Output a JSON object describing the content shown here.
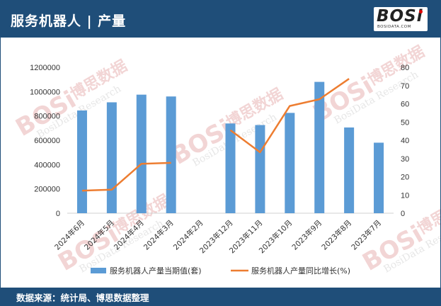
{
  "header": {
    "title": "服务机器人 | 产量"
  },
  "logo": {
    "main": "BOSi",
    "sub": "BOSIDATA.COM"
  },
  "footer": {
    "source": "数据来源：统计局、博思数据整理"
  },
  "watermark": {
    "mark": "BOSi",
    "cn": "博思数据",
    "en": "BosiData Research"
  },
  "colors": {
    "bar": "#5b9bd5",
    "line": "#ed7d31",
    "header": "#1f4e79"
  },
  "chart_data": {
    "type": "bar",
    "categories": [
      "2024年6月",
      "2024年5月",
      "2024年4月",
      "2024年3月",
      "2024年2月",
      "2023年12月",
      "2023年11月",
      "2023年10月",
      "2023年9月",
      "2023年8月",
      "2023年7月"
    ],
    "series": [
      {
        "name": "服务机器人产量当期值(套)",
        "type": "bar",
        "axis": "left",
        "values": [
          845000,
          912000,
          975000,
          960000,
          null,
          738000,
          725000,
          825000,
          1080000,
          705000,
          580000
        ]
      },
      {
        "name": "服务机器人产量同比增长(%)",
        "type": "line",
        "axis": "right",
        "values": [
          12.4,
          12.9,
          27.1,
          27.6,
          null,
          45.5,
          33.4,
          58.8,
          62.5,
          73.7,
          null
        ]
      }
    ],
    "y_left": {
      "min": 0,
      "max": 1200000,
      "ticks": [
        "0",
        "200000",
        "400000",
        "600000",
        "800000",
        "1000000",
        "1200000"
      ]
    },
    "y_right": {
      "min": 0,
      "max": 80,
      "ticks": [
        "0",
        "10",
        "20",
        "30",
        "40",
        "50",
        "60",
        "70",
        "80"
      ]
    },
    "grid": false,
    "legend_position": "bottom"
  }
}
